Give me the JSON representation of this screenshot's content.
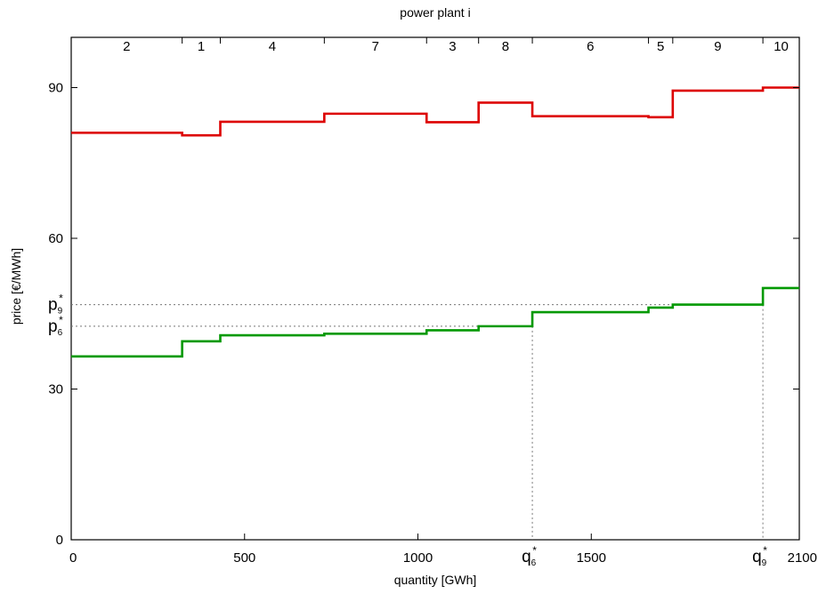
{
  "chart_data": {
    "type": "line",
    "title": "power plant i",
    "xlabel": "quantity [GWh]",
    "ylabel": "price [€/MWh]",
    "xlim": [
      0,
      2100
    ],
    "ylim": [
      0,
      100
    ],
    "x_ticks": [
      "0",
      "500",
      "1000",
      "1500",
      "2100"
    ],
    "x_tick_values": [
      0,
      500,
      1000,
      1500,
      2100
    ],
    "y_ticks": [
      "0",
      "30",
      "60",
      "90"
    ],
    "y_tick_values": [
      0,
      30,
      60,
      90
    ],
    "grid": false,
    "top_axis": {
      "boundaries": [
        0,
        320,
        430,
        730,
        1025,
        1175,
        1330,
        1665,
        1735,
        1995,
        2100
      ],
      "labels": [
        "2",
        "1",
        "4",
        "7",
        "3",
        "8",
        "6",
        "5",
        "9",
        "10"
      ]
    },
    "series": [
      {
        "color": "#dd0000",
        "step_edges": [
          0,
          320,
          430,
          730,
          1025,
          1175,
          1330,
          1665,
          1735,
          1995,
          2100
        ],
        "values": [
          81,
          80.5,
          83.2,
          84.8,
          83.1,
          87.0,
          84.3,
          84.1,
          89.4,
          90.0
        ]
      },
      {
        "color": "#009900",
        "step_edges": [
          0,
          320,
          430,
          730,
          1025,
          1175,
          1330,
          1665,
          1735,
          1995,
          2100
        ],
        "values": [
          36.5,
          39.5,
          40.7,
          41.0,
          41.7,
          42.5,
          45.3,
          46.2,
          46.8,
          50.1
        ]
      }
    ],
    "reference_markers": [
      {
        "axis_label": "q",
        "axis_index": "6",
        "price_label": "p",
        "price_index": "6",
        "x": 1330,
        "y": 42.5
      },
      {
        "axis_label": "q",
        "axis_index": "9",
        "price_label": "p",
        "price_index": "9",
        "x": 1995,
        "y": 46.8
      }
    ],
    "star_symbol": "*"
  }
}
